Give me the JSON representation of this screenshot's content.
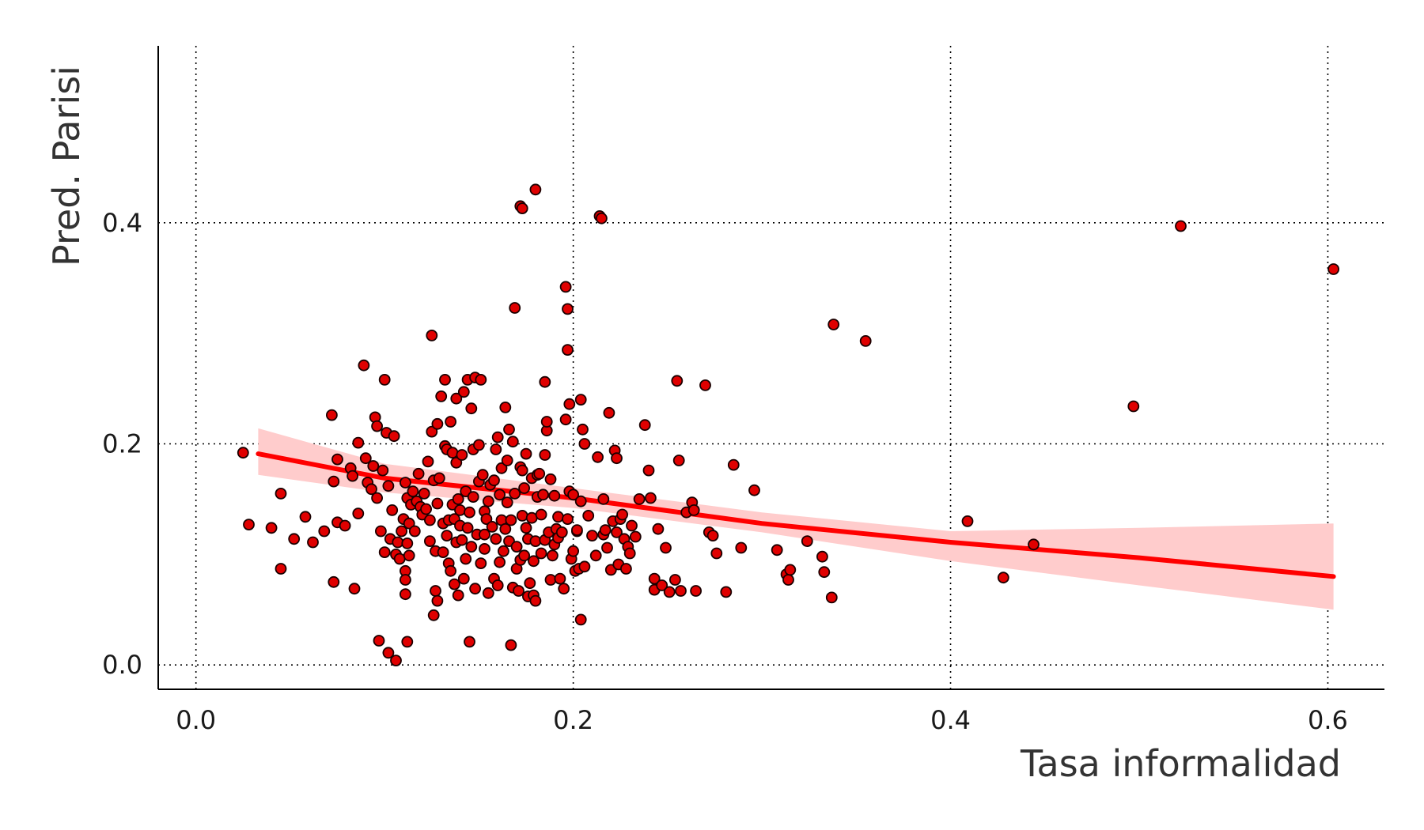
{
  "chart_data": {
    "type": "scatter",
    "title": "",
    "xlabel": "Tasa informalidad",
    "ylabel": "Pred. Parisi",
    "xlim": [
      -0.02,
      0.63
    ],
    "ylim": [
      -0.022,
      0.56
    ],
    "x_ticks": [
      0.0,
      0.2,
      0.4,
      0.6
    ],
    "x_tick_labels": [
      "0.0",
      "0.2",
      "0.4",
      "0.6"
    ],
    "y_ticks": [
      0.0,
      0.2,
      0.4
    ],
    "y_tick_labels": [
      "0.0",
      "0.2",
      "0.4"
    ],
    "grid": true,
    "legend": "none",
    "colors": {
      "point_fill": "#e00000",
      "point_stroke": "#1a0000",
      "trend_line": "#ff0000",
      "confidence_band": "#ffcccc"
    },
    "trend": {
      "x": [
        0.033,
        0.1,
        0.2,
        0.3,
        0.4,
        0.5,
        0.603
      ],
      "y": [
        0.191,
        0.169,
        0.151,
        0.128,
        0.111,
        0.097,
        0.08
      ],
      "lower": [
        0.172,
        0.156,
        0.142,
        0.12,
        0.094,
        0.072,
        0.05
      ],
      "upper": [
        0.214,
        0.182,
        0.16,
        0.138,
        0.121,
        0.124,
        0.128
      ]
    },
    "points": [
      [
        0.025,
        0.192
      ],
      [
        0.028,
        0.127
      ],
      [
        0.04,
        0.124
      ],
      [
        0.045,
        0.155
      ],
      [
        0.045,
        0.087
      ],
      [
        0.052,
        0.114
      ],
      [
        0.058,
        0.134
      ],
      [
        0.062,
        0.111
      ],
      [
        0.068,
        0.121
      ],
      [
        0.072,
        0.226
      ],
      [
        0.073,
        0.166
      ],
      [
        0.073,
        0.075
      ],
      [
        0.075,
        0.186
      ],
      [
        0.075,
        0.129
      ],
      [
        0.079,
        0.126
      ],
      [
        0.082,
        0.178
      ],
      [
        0.083,
        0.171
      ],
      [
        0.084,
        0.069
      ],
      [
        0.086,
        0.201
      ],
      [
        0.086,
        0.137
      ],
      [
        0.089,
        0.271
      ],
      [
        0.09,
        0.187
      ],
      [
        0.091,
        0.165
      ],
      [
        0.093,
        0.159
      ],
      [
        0.094,
        0.18
      ],
      [
        0.095,
        0.224
      ],
      [
        0.096,
        0.216
      ],
      [
        0.096,
        0.151
      ],
      [
        0.097,
        0.022
      ],
      [
        0.098,
        0.121
      ],
      [
        0.099,
        0.176
      ],
      [
        0.1,
        0.258
      ],
      [
        0.1,
        0.102
      ],
      [
        0.101,
        0.21
      ],
      [
        0.102,
        0.162
      ],
      [
        0.102,
        0.011
      ],
      [
        0.103,
        0.114
      ],
      [
        0.104,
        0.14
      ],
      [
        0.105,
        0.207
      ],
      [
        0.106,
        0.004
      ],
      [
        0.106,
        0.1
      ],
      [
        0.107,
        0.111
      ],
      [
        0.108,
        0.096
      ],
      [
        0.109,
        0.121
      ],
      [
        0.11,
        0.132
      ],
      [
        0.111,
        0.165
      ],
      [
        0.111,
        0.085
      ],
      [
        0.111,
        0.077
      ],
      [
        0.111,
        0.064
      ],
      [
        0.112,
        0.151
      ],
      [
        0.112,
        0.11
      ],
      [
        0.112,
        0.021
      ],
      [
        0.113,
        0.128
      ],
      [
        0.113,
        0.099
      ],
      [
        0.114,
        0.145
      ],
      [
        0.115,
        0.157
      ],
      [
        0.116,
        0.121
      ],
      [
        0.117,
        0.148
      ],
      [
        0.118,
        0.173
      ],
      [
        0.119,
        0.143
      ],
      [
        0.12,
        0.136
      ],
      [
        0.121,
        0.155
      ],
      [
        0.122,
        0.141
      ],
      [
        0.123,
        0.184
      ],
      [
        0.124,
        0.131
      ],
      [
        0.124,
        0.112
      ],
      [
        0.125,
        0.298
      ],
      [
        0.125,
        0.211
      ],
      [
        0.126,
        0.167
      ],
      [
        0.126,
        0.045
      ],
      [
        0.127,
        0.103
      ],
      [
        0.127,
        0.067
      ],
      [
        0.128,
        0.218
      ],
      [
        0.128,
        0.146
      ],
      [
        0.128,
        0.058
      ],
      [
        0.129,
        0.169
      ],
      [
        0.13,
        0.243
      ],
      [
        0.131,
        0.128
      ],
      [
        0.131,
        0.102
      ],
      [
        0.132,
        0.198
      ],
      [
        0.132,
        0.258
      ],
      [
        0.133,
        0.195
      ],
      [
        0.133,
        0.117
      ],
      [
        0.134,
        0.092
      ],
      [
        0.134,
        0.131
      ],
      [
        0.135,
        0.085
      ],
      [
        0.135,
        0.22
      ],
      [
        0.136,
        0.145
      ],
      [
        0.136,
        0.192
      ],
      [
        0.137,
        0.073
      ],
      [
        0.137,
        0.132
      ],
      [
        0.138,
        0.183
      ],
      [
        0.138,
        0.111
      ],
      [
        0.138,
        0.241
      ],
      [
        0.139,
        0.15
      ],
      [
        0.139,
        0.063
      ],
      [
        0.14,
        0.14
      ],
      [
        0.14,
        0.126
      ],
      [
        0.141,
        0.113
      ],
      [
        0.141,
        0.19
      ],
      [
        0.142,
        0.247
      ],
      [
        0.142,
        0.078
      ],
      [
        0.143,
        0.157
      ],
      [
        0.143,
        0.096
      ],
      [
        0.144,
        0.124
      ],
      [
        0.144,
        0.258
      ],
      [
        0.145,
        0.021
      ],
      [
        0.145,
        0.138
      ],
      [
        0.146,
        0.232
      ],
      [
        0.146,
        0.107
      ],
      [
        0.147,
        0.195
      ],
      [
        0.147,
        0.152
      ],
      [
        0.148,
        0.069
      ],
      [
        0.148,
        0.26
      ],
      [
        0.149,
        0.118
      ],
      [
        0.15,
        0.166
      ],
      [
        0.15,
        0.199
      ],
      [
        0.151,
        0.092
      ],
      [
        0.151,
        0.258
      ],
      [
        0.152,
        0.172
      ],
      [
        0.153,
        0.118
      ],
      [
        0.153,
        0.139
      ],
      [
        0.153,
        0.105
      ],
      [
        0.154,
        0.132
      ],
      [
        0.155,
        0.148
      ],
      [
        0.155,
        0.065
      ],
      [
        0.156,
        0.163
      ],
      [
        0.157,
        0.125
      ],
      [
        0.158,
        0.167
      ],
      [
        0.158,
        0.078
      ],
      [
        0.159,
        0.195
      ],
      [
        0.159,
        0.114
      ],
      [
        0.16,
        0.206
      ],
      [
        0.16,
        0.072
      ],
      [
        0.161,
        0.154
      ],
      [
        0.161,
        0.093
      ],
      [
        0.162,
        0.131
      ],
      [
        0.162,
        0.178
      ],
      [
        0.163,
        0.103
      ],
      [
        0.164,
        0.123
      ],
      [
        0.164,
        0.233
      ],
      [
        0.165,
        0.147
      ],
      [
        0.165,
        0.185
      ],
      [
        0.166,
        0.213
      ],
      [
        0.166,
        0.112
      ],
      [
        0.167,
        0.018
      ],
      [
        0.167,
        0.131
      ],
      [
        0.168,
        0.202
      ],
      [
        0.168,
        0.07
      ],
      [
        0.169,
        0.323
      ],
      [
        0.169,
        0.155
      ],
      [
        0.17,
        0.087
      ],
      [
        0.17,
        0.107
      ],
      [
        0.171,
        0.067
      ],
      [
        0.172,
        0.179
      ],
      [
        0.172,
        0.095
      ],
      [
        0.172,
        0.415
      ],
      [
        0.173,
        0.176
      ],
      [
        0.173,
        0.135
      ],
      [
        0.173,
        0.413
      ],
      [
        0.174,
        0.16
      ],
      [
        0.174,
        0.099
      ],
      [
        0.175,
        0.124
      ],
      [
        0.175,
        0.191
      ],
      [
        0.176,
        0.062
      ],
      [
        0.176,
        0.114
      ],
      [
        0.177,
        0.074
      ],
      [
        0.178,
        0.133
      ],
      [
        0.178,
        0.169
      ],
      [
        0.179,
        0.094
      ],
      [
        0.179,
        0.063
      ],
      [
        0.18,
        0.112
      ],
      [
        0.18,
        0.058
      ],
      [
        0.18,
        0.43
      ],
      [
        0.181,
        0.152
      ],
      [
        0.181,
        0.172
      ],
      [
        0.182,
        0.173
      ],
      [
        0.183,
        0.101
      ],
      [
        0.183,
        0.136
      ],
      [
        0.184,
        0.154
      ],
      [
        0.185,
        0.256
      ],
      [
        0.185,
        0.19
      ],
      [
        0.185,
        0.113
      ],
      [
        0.186,
        0.212
      ],
      [
        0.186,
        0.22
      ],
      [
        0.187,
        0.12
      ],
      [
        0.188,
        0.077
      ],
      [
        0.188,
        0.168
      ],
      [
        0.189,
        0.099
      ],
      [
        0.19,
        0.153
      ],
      [
        0.19,
        0.109
      ],
      [
        0.191,
        0.123
      ],
      [
        0.192,
        0.134
      ],
      [
        0.192,
        0.115
      ],
      [
        0.193,
        0.078
      ],
      [
        0.194,
        0.12
      ],
      [
        0.195,
        0.069
      ],
      [
        0.196,
        0.222
      ],
      [
        0.196,
        0.342
      ],
      [
        0.197,
        0.322
      ],
      [
        0.197,
        0.285
      ],
      [
        0.197,
        0.132
      ],
      [
        0.198,
        0.236
      ],
      [
        0.198,
        0.157
      ],
      [
        0.199,
        0.096
      ],
      [
        0.2,
        0.103
      ],
      [
        0.2,
        0.154
      ],
      [
        0.201,
        0.085
      ],
      [
        0.202,
        0.121
      ],
      [
        0.202,
        0.122
      ],
      [
        0.203,
        0.087
      ],
      [
        0.204,
        0.148
      ],
      [
        0.204,
        0.24
      ],
      [
        0.204,
        0.041
      ],
      [
        0.205,
        0.213
      ],
      [
        0.206,
        0.089
      ],
      [
        0.206,
        0.2
      ],
      [
        0.208,
        0.135
      ],
      [
        0.21,
        0.117
      ],
      [
        0.212,
        0.099
      ],
      [
        0.213,
        0.188
      ],
      [
        0.214,
        0.406
      ],
      [
        0.215,
        0.404
      ],
      [
        0.216,
        0.15
      ],
      [
        0.216,
        0.118
      ],
      [
        0.217,
        0.122
      ],
      [
        0.218,
        0.106
      ],
      [
        0.219,
        0.228
      ],
      [
        0.22,
        0.086
      ],
      [
        0.221,
        0.13
      ],
      [
        0.222,
        0.194
      ],
      [
        0.223,
        0.12
      ],
      [
        0.223,
        0.187
      ],
      [
        0.224,
        0.091
      ],
      [
        0.225,
        0.132
      ],
      [
        0.226,
        0.136
      ],
      [
        0.227,
        0.114
      ],
      [
        0.228,
        0.087
      ],
      [
        0.229,
        0.107
      ],
      [
        0.23,
        0.101
      ],
      [
        0.231,
        0.126
      ],
      [
        0.233,
        0.116
      ],
      [
        0.235,
        0.15
      ],
      [
        0.238,
        0.217
      ],
      [
        0.24,
        0.176
      ],
      [
        0.241,
        0.151
      ],
      [
        0.243,
        0.078
      ],
      [
        0.243,
        0.068
      ],
      [
        0.245,
        0.123
      ],
      [
        0.247,
        0.072
      ],
      [
        0.249,
        0.106
      ],
      [
        0.251,
        0.066
      ],
      [
        0.254,
        0.077
      ],
      [
        0.255,
        0.257
      ],
      [
        0.256,
        0.185
      ],
      [
        0.257,
        0.067
      ],
      [
        0.26,
        0.138
      ],
      [
        0.263,
        0.147
      ],
      [
        0.264,
        0.14
      ],
      [
        0.265,
        0.067
      ],
      [
        0.27,
        0.253
      ],
      [
        0.272,
        0.12
      ],
      [
        0.274,
        0.117
      ],
      [
        0.276,
        0.101
      ],
      [
        0.281,
        0.066
      ],
      [
        0.285,
        0.181
      ],
      [
        0.289,
        0.106
      ],
      [
        0.296,
        0.158
      ],
      [
        0.308,
        0.104
      ],
      [
        0.313,
        0.082
      ],
      [
        0.314,
        0.077
      ],
      [
        0.315,
        0.086
      ],
      [
        0.324,
        0.112
      ],
      [
        0.332,
        0.098
      ],
      [
        0.333,
        0.084
      ],
      [
        0.337,
        0.061
      ],
      [
        0.338,
        0.308
      ],
      [
        0.355,
        0.293
      ],
      [
        0.409,
        0.13
      ],
      [
        0.428,
        0.079
      ],
      [
        0.444,
        0.109
      ],
      [
        0.497,
        0.234
      ],
      [
        0.522,
        0.397
      ],
      [
        0.603,
        0.358
      ]
    ]
  }
}
